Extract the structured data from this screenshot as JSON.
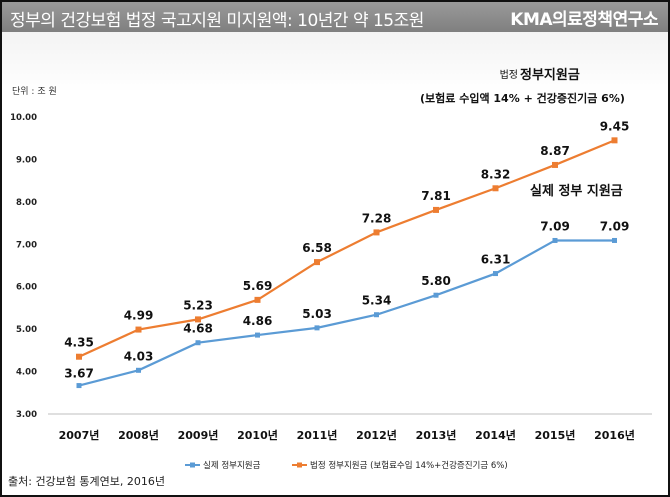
{
  "header": {
    "title": "정부의 건강보험 법정 국고지원 미지원액: 10년간 약 15조원",
    "brand": "KMA의료정책연구소"
  },
  "unit_label": "단위 : 조 원",
  "source": "출처: 건강보험 통계연보, 2016년",
  "annotations": {
    "legal_prefix": "법정",
    "legal_main": "정부지원금",
    "legal_detail": "(보험료 수입액 14% + 건강증진기금 6%)",
    "actual": "실제 정부 지원금"
  },
  "colors": {
    "legal": "#ED7D31",
    "actual": "#5B9BD5"
  },
  "chart_data": {
    "type": "line",
    "x": [
      "2007년",
      "2008년",
      "2009년",
      "2010년",
      "2011년",
      "2012년",
      "2013년",
      "2014년",
      "2015년",
      "2016년"
    ],
    "ylim": [
      3.0,
      10.0
    ],
    "yticks": [
      "3.00",
      "4.00",
      "5.00",
      "6.00",
      "7.00",
      "8.00",
      "9.00",
      "10.00"
    ],
    "grid": false,
    "legend_position": "bottom",
    "series": [
      {
        "name": "실제 정부지원금",
        "color": "#5B9BD5",
        "values": [
          3.67,
          4.03,
          4.68,
          4.86,
          5.03,
          5.34,
          5.8,
          6.31,
          7.09,
          7.09
        ],
        "labels": [
          "3.67",
          "4.03",
          "4.68",
          "4.86",
          "5.03",
          "5.34",
          "5.80",
          "6.31",
          "7.09",
          "7.09"
        ]
      },
      {
        "name": "법정 정부지원금 (보험료수입 14%+건강증진기금 6%)",
        "color": "#ED7D31",
        "values": [
          4.35,
          4.99,
          5.23,
          5.69,
          6.58,
          7.28,
          7.81,
          8.32,
          8.87,
          9.45
        ],
        "labels": [
          "4.35",
          "4.99",
          "5.23",
          "5.69",
          "6.58",
          "7.28",
          "7.81",
          "8.32",
          "8.87",
          "9.45"
        ]
      }
    ]
  }
}
